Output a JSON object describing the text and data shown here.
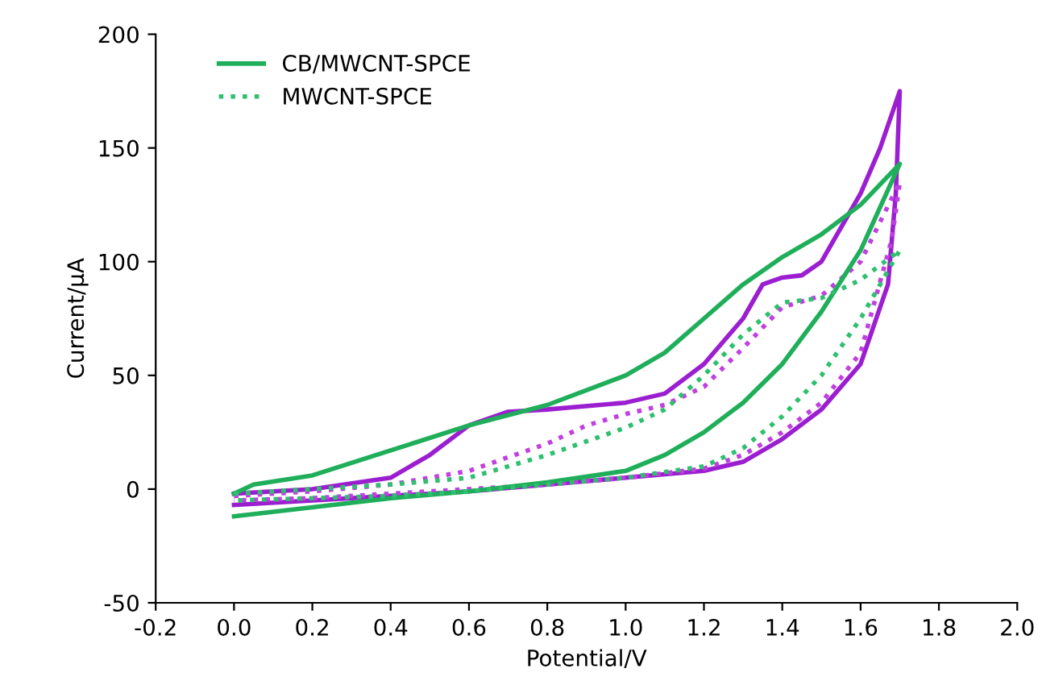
{
  "chart_data": {
    "type": "line",
    "xlabel": "Potential/V",
    "ylabel": "Current/μA",
    "xlim": [
      -0.2,
      2.0
    ],
    "xticks": [
      {
        "value": -0.2,
        "label": "-0.2"
      },
      {
        "value": 0,
        "label": "0.0"
      },
      {
        "value": 0.2,
        "label": "0.2"
      },
      {
        "value": 0.4,
        "label": "0.4"
      },
      {
        "value": 0.6,
        "label": "0.6"
      },
      {
        "value": 0.8,
        "label": "0.8"
      },
      {
        "value": 1.0,
        "label": "1.0"
      },
      {
        "value": 1.2,
        "label": "1.2"
      },
      {
        "value": 1.4,
        "label": "1.4"
      },
      {
        "value": 1.6,
        "label": "1.6"
      },
      {
        "value": 1.8,
        "label": "1.8"
      },
      {
        "value": 2.0,
        "label": "2.0"
      }
    ],
    "ylim": [
      -50,
      200
    ],
    "yticks": [
      -50,
      0,
      50,
      100,
      150,
      200
    ],
    "grid": false,
    "legend": "top left",
    "series": [
      {
        "color": "#9b1fd0",
        "line_style": "solid",
        "x": [
          0,
          0.2,
          0.4,
          0.5,
          0.6,
          0.7,
          0.8,
          1.0,
          1.1,
          1.2,
          1.3,
          1.35,
          1.4,
          1.45,
          1.5,
          1.6,
          1.65,
          1.7,
          1.69,
          1.67,
          1.6,
          1.5,
          1.4,
          1.3,
          1.2,
          1.0,
          0.8,
          0.6,
          0.4,
          0.2,
          0
        ],
        "values": [
          -2,
          0,
          5,
          15,
          28,
          34,
          35,
          38,
          42,
          55,
          75,
          90,
          93,
          94,
          100,
          130,
          150,
          175,
          130,
          90,
          55,
          35,
          22,
          12,
          8,
          5,
          2,
          -1,
          -3,
          -5,
          -7
        ]
      },
      {
        "color": "#c040e0",
        "line_style": "dotted",
        "x": [
          0,
          0.2,
          0.4,
          0.6,
          0.8,
          0.9,
          1.0,
          1.1,
          1.2,
          1.3,
          1.4,
          1.5,
          1.6,
          1.7,
          1.68,
          1.6,
          1.5,
          1.4,
          1.3,
          1.2,
          1.0,
          0.8,
          0.6,
          0.4,
          0.2,
          0
        ],
        "values": [
          -3,
          -1,
          2,
          8,
          20,
          28,
          33,
          37,
          45,
          62,
          80,
          85,
          100,
          135,
          110,
          60,
          38,
          25,
          15,
          9,
          5,
          2,
          0,
          -2,
          -4,
          -5
        ]
      },
      {
        "name": "CB/MWCNT-SPCE",
        "color": "#1fae5a",
        "line_style": "solid",
        "x": [
          0,
          0.05,
          0.2,
          0.4,
          0.6,
          0.8,
          1.0,
          1.1,
          1.2,
          1.3,
          1.4,
          1.5,
          1.6,
          1.7,
          1.6,
          1.5,
          1.4,
          1.3,
          1.2,
          1.1,
          1.0,
          0.8,
          0.6,
          0.4,
          0.2,
          0
        ],
        "values": [
          -2,
          2,
          6,
          17,
          28,
          37,
          50,
          60,
          75,
          90,
          102,
          112,
          125,
          143,
          105,
          78,
          55,
          38,
          25,
          15,
          8,
          3,
          -1,
          -4,
          -8,
          -12
        ]
      },
      {
        "name": "MWCNT-SPCE",
        "color": "#2fbf6f",
        "line_style": "dotted",
        "x": [
          0,
          0.2,
          0.4,
          0.6,
          0.8,
          1.0,
          1.1,
          1.2,
          1.3,
          1.4,
          1.5,
          1.6,
          1.7,
          1.6,
          1.5,
          1.4,
          1.3,
          1.2,
          1.0,
          0.8,
          0.6,
          0.4,
          0.2,
          0
        ],
        "values": [
          -2,
          0,
          2,
          5,
          15,
          27,
          35,
          50,
          68,
          82,
          84,
          92,
          105,
          75,
          50,
          32,
          18,
          10,
          5,
          2,
          -1,
          -3,
          -4,
          -5
        ]
      }
    ]
  }
}
